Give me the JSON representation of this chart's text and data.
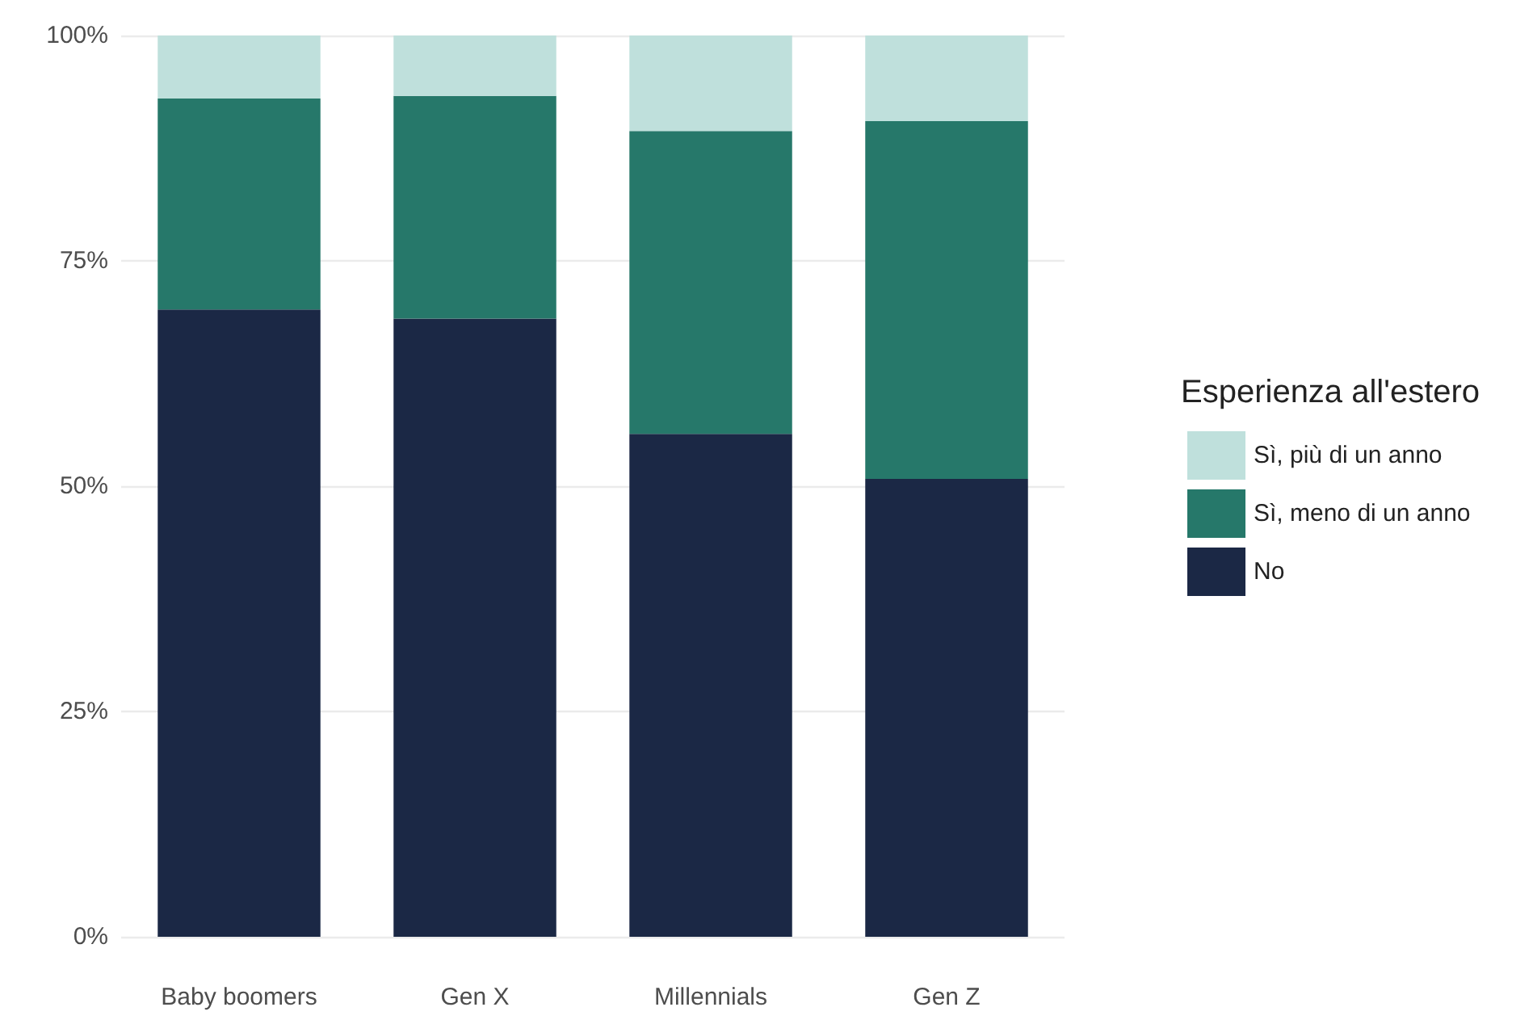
{
  "chart_data": {
    "type": "bar",
    "stacked": true,
    "legend_title": "Esperienza all'estero",
    "legend": "right",
    "grid": "y",
    "categories": [
      "Baby boomers",
      "Gen X",
      "Millennials",
      "Gen Z"
    ],
    "series": [
      {
        "name": "No",
        "color": "#1b2845",
        "values": [
          69.6,
          68.6,
          55.8,
          50.8
        ]
      },
      {
        "name": "Sì, meno di un anno",
        "color": "#26786a",
        "values": [
          23.4,
          24.7,
          33.6,
          39.7
        ]
      },
      {
        "name": "Sì, più di un anno",
        "color": "#bfe0dc",
        "values": [
          7.0,
          6.7,
          10.6,
          9.5
        ]
      }
    ],
    "ylim": [
      0,
      100
    ],
    "yticks": [
      {
        "value": 0,
        "label": "0%"
      },
      {
        "value": 25,
        "label": "25%"
      },
      {
        "value": 50,
        "label": "50%"
      },
      {
        "value": 75,
        "label": "75%"
      },
      {
        "value": 100,
        "label": "100%"
      }
    ]
  }
}
